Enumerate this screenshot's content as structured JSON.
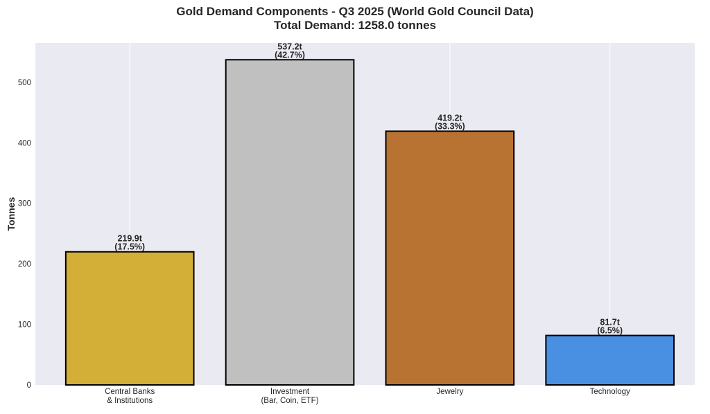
{
  "chart_data": {
    "type": "bar",
    "title": "Gold Demand Components - Q3 2025 (World Gold Council Data)",
    "subtitle": "Total Demand: 1258.0 tonnes",
    "xlabel": "",
    "ylabel": "Tonnes",
    "ylim": [
      0,
      565
    ],
    "yticks": [
      0,
      100,
      200,
      300,
      400,
      500
    ],
    "grid": "vertical lines at categories",
    "categories": [
      [
        "Central Banks",
        "& Institutions"
      ],
      [
        "Investment",
        "(Bar, Coin, ETF)"
      ],
      [
        "Jewelry"
      ],
      [
        "Technology"
      ]
    ],
    "values": [
      219.9,
      537.2,
      419.2,
      81.7
    ],
    "value_labels": [
      "219.9t",
      "537.2t",
      "419.2t",
      "81.7t"
    ],
    "percent_labels": [
      "(17.5%)",
      "(42.7%)",
      "(33.3%)",
      "(6.5%)"
    ],
    "colors": [
      "#D4AF37",
      "#C0C0C0",
      "#B87333",
      "#4A90E2"
    ],
    "background": "#EAEAF2",
    "edge_color": "#000000"
  }
}
